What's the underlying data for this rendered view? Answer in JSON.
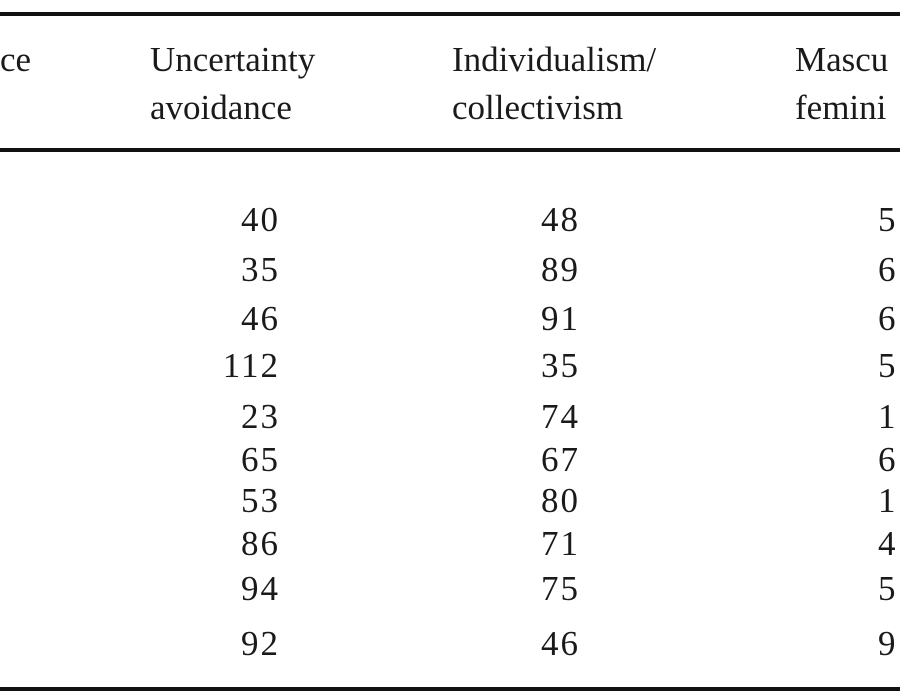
{
  "table": {
    "headers": {
      "power_distance_fragment": "ce",
      "uncertainty_avoidance": [
        "Uncertainty",
        "avoidance"
      ],
      "individualism_collectivism": [
        "Individualism/",
        "collectivism"
      ],
      "masculinity_femininity": [
        "Mascu",
        "femini"
      ]
    },
    "rows": [
      {
        "ua": "40",
        "ic": "48",
        "mf": "5"
      },
      {
        "ua": "35",
        "ic": "89",
        "mf": "6"
      },
      {
        "ua": "46",
        "ic": "91",
        "mf": "6"
      },
      {
        "ua": "112",
        "ic": "35",
        "mf": "5"
      },
      {
        "ua": "23",
        "ic": "74",
        "mf": "1"
      },
      {
        "ua": "65",
        "ic": "67",
        "mf": "6"
      },
      {
        "ua": "53",
        "ic": "80",
        "mf": "1"
      },
      {
        "ua": "86",
        "ic": "71",
        "mf": "4"
      },
      {
        "ua": "94",
        "ic": "75",
        "mf": "5"
      },
      {
        "ua": "92",
        "ic": "46",
        "mf": "9"
      }
    ]
  }
}
